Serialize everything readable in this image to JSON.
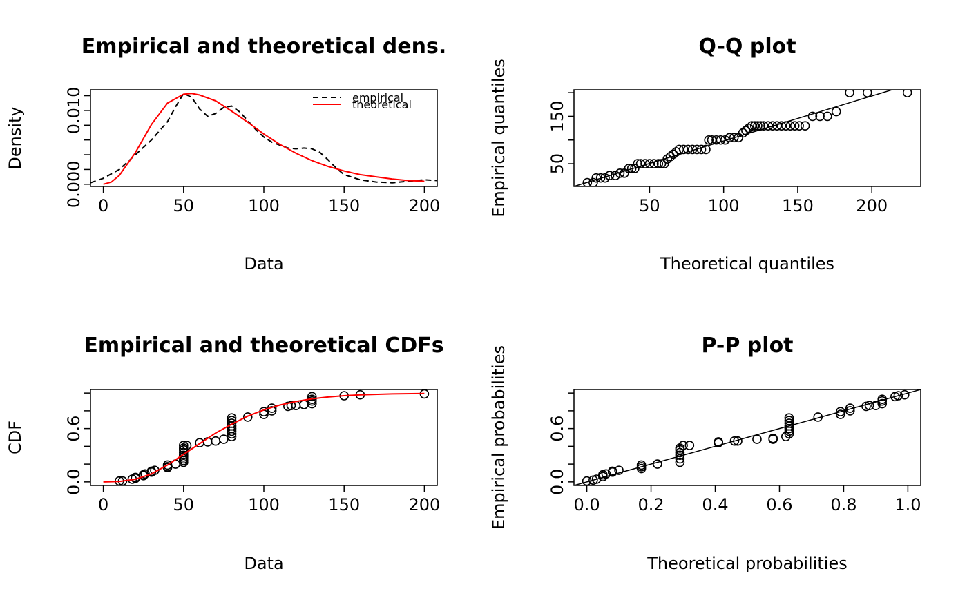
{
  "chart_data": [
    {
      "type": "line",
      "title": "Empirical and theoretical dens.",
      "xlabel": "Data",
      "ylabel": "Density",
      "xlim": [
        -8,
        208
      ],
      "ylim": [
        -0.0003,
        0.0128
      ],
      "xticks": [
        0,
        50,
        100,
        150,
        200
      ],
      "yticks": [
        0.0,
        0.002,
        0.004,
        0.006,
        0.008,
        0.01,
        0.012
      ],
      "ytick_labels": [
        "0.000",
        "",
        "",
        "",
        "",
        "0.010",
        ""
      ],
      "legend_position": "top-right",
      "series": [
        {
          "name": "empirical",
          "style": "dashed",
          "color": "#000000",
          "x": [
            -8,
            0,
            10,
            20,
            30,
            40,
            45,
            50,
            55,
            60,
            65,
            70,
            75,
            80,
            85,
            90,
            95,
            100,
            105,
            110,
            115,
            120,
            125,
            130,
            135,
            140,
            145,
            150,
            160,
            170,
            180,
            190,
            200,
            208
          ],
          "y": [
            0.0002,
            0.0008,
            0.002,
            0.004,
            0.006,
            0.0085,
            0.0105,
            0.0123,
            0.0118,
            0.0102,
            0.0092,
            0.0096,
            0.0104,
            0.0106,
            0.0098,
            0.0086,
            0.0074,
            0.0064,
            0.0057,
            0.0053,
            0.0049,
            0.0048,
            0.0049,
            0.0048,
            0.0043,
            0.0033,
            0.0022,
            0.0013,
            0.0006,
            0.0003,
            0.0002,
            0.0004,
            0.0006,
            0.0005
          ]
        },
        {
          "name": "theoretical",
          "style": "solid",
          "color": "#ff0000",
          "x": [
            0,
            5,
            10,
            20,
            30,
            40,
            50,
            55,
            60,
            70,
            80,
            90,
            100,
            110,
            120,
            130,
            140,
            150,
            160,
            170,
            180,
            190,
            200
          ],
          "y": [
            0.0,
            0.0003,
            0.0012,
            0.0043,
            0.0081,
            0.011,
            0.0122,
            0.0123,
            0.0121,
            0.0113,
            0.0099,
            0.0084,
            0.0068,
            0.0054,
            0.0042,
            0.0032,
            0.0024,
            0.0018,
            0.0013,
            0.001,
            0.0007,
            0.0005,
            0.0004
          ]
        }
      ]
    },
    {
      "type": "scatter",
      "title": "Q-Q plot",
      "xlabel": "Theoretical quantiles",
      "ylabel": "Empirical quantiles",
      "xlim": [
        -1,
        233
      ],
      "ylim": [
        2,
        206
      ],
      "xticks": [
        50,
        100,
        150,
        200
      ],
      "yticks": [
        50,
        100,
        150,
        200
      ],
      "ytick_labels": [
        "50",
        "",
        "150",
        ""
      ],
      "reference_line": {
        "slope": 0.95,
        "intercept": 3
      },
      "points": {
        "x": [
          8,
          12,
          14,
          17,
          20,
          23,
          27,
          30,
          33,
          36,
          38,
          40,
          42,
          44,
          47,
          50,
          53,
          56,
          58,
          60,
          62,
          64,
          66,
          68,
          70,
          73,
          76,
          79,
          82,
          85,
          88,
          90,
          92,
          95,
          98,
          101,
          104,
          107,
          110,
          113,
          115,
          117,
          119,
          121,
          123,
          125,
          127,
          130,
          133,
          136,
          139,
          142,
          145,
          148,
          151,
          155,
          160,
          165,
          170,
          176,
          185,
          197,
          224
        ],
        "y": [
          10,
          10,
          20,
          20,
          20,
          25,
          25,
          30,
          30,
          40,
          40,
          40,
          50,
          50,
          50,
          50,
          50,
          50,
          50,
          50,
          60,
          65,
          70,
          75,
          80,
          80,
          80,
          80,
          80,
          80,
          80,
          100,
          100,
          100,
          100,
          100,
          105,
          105,
          105,
          115,
          120,
          125,
          130,
          130,
          130,
          130,
          130,
          130,
          130,
          130,
          130,
          130,
          130,
          130,
          130,
          130,
          150,
          150,
          150,
          160,
          200,
          200,
          200
        ]
      }
    },
    {
      "type": "scatter",
      "title": "Empirical and theoretical CDFs",
      "xlabel": "Data",
      "ylabel": "CDF",
      "xlim": [
        -8,
        208
      ],
      "ylim": [
        -0.04,
        1.04
      ],
      "xticks": [
        0,
        50,
        100,
        150,
        200
      ],
      "yticks": [
        0.0,
        0.2,
        0.4,
        0.6,
        0.8,
        1.0
      ],
      "ytick_labels": [
        "0.0",
        "",
        "",
        "0.6",
        "",
        ""
      ],
      "theoretical_curve": {
        "name": "theoretical",
        "color": "#ff0000",
        "x": [
          0,
          10,
          20,
          30,
          40,
          50,
          60,
          70,
          80,
          90,
          100,
          110,
          120,
          130,
          140,
          150,
          160,
          180,
          200
        ],
        "y": [
          0.0,
          0.005,
          0.03,
          0.09,
          0.19,
          0.31,
          0.43,
          0.55,
          0.65,
          0.74,
          0.81,
          0.865,
          0.905,
          0.935,
          0.955,
          0.97,
          0.98,
          0.99,
          0.995
        ]
      },
      "points": {
        "x": [
          10,
          12,
          18,
          20,
          20,
          25,
          25,
          26,
          30,
          30,
          32,
          40,
          40,
          40,
          45,
          50,
          50,
          50,
          50,
          50,
          50,
          50,
          50,
          50,
          52,
          60,
          65,
          70,
          75,
          80,
          80,
          80,
          80,
          80,
          80,
          80,
          80,
          90,
          100,
          100,
          105,
          105,
          115,
          117,
          120,
          125,
          130,
          130,
          130,
          130,
          150,
          160,
          200
        ],
        "y": [
          0.01,
          0.01,
          0.03,
          0.04,
          0.05,
          0.07,
          0.08,
          0.09,
          0.11,
          0.12,
          0.13,
          0.16,
          0.17,
          0.19,
          0.2,
          0.22,
          0.24,
          0.26,
          0.28,
          0.3,
          0.33,
          0.36,
          0.38,
          0.41,
          0.41,
          0.44,
          0.45,
          0.46,
          0.48,
          0.51,
          0.54,
          0.57,
          0.6,
          0.63,
          0.66,
          0.69,
          0.72,
          0.73,
          0.76,
          0.79,
          0.8,
          0.83,
          0.85,
          0.86,
          0.86,
          0.87,
          0.88,
          0.91,
          0.93,
          0.96,
          0.97,
          0.98,
          0.99
        ]
      }
    },
    {
      "type": "scatter",
      "title": "P-P plot",
      "xlabel": "Theoretical probabilities",
      "ylabel": "Empirical probabilities",
      "xlim": [
        -0.04,
        1.04
      ],
      "ylim": [
        -0.04,
        1.04
      ],
      "xticks": [
        0.0,
        0.2,
        0.4,
        0.6,
        0.8,
        1.0
      ],
      "xtick_labels": [
        "0.0",
        "0.2",
        "0.4",
        "0.6",
        "0.8",
        "1.0"
      ],
      "yticks": [
        0.0,
        0.2,
        0.4,
        0.6,
        0.8,
        1.0
      ],
      "ytick_labels": [
        "0.0",
        "",
        "",
        "0.6",
        "",
        ""
      ],
      "reference_line": {
        "slope": 1,
        "intercept": 0
      },
      "points": {
        "x": [
          0.0,
          0.02,
          0.03,
          0.05,
          0.05,
          0.06,
          0.08,
          0.08,
          0.1,
          0.17,
          0.17,
          0.17,
          0.22,
          0.29,
          0.29,
          0.29,
          0.29,
          0.29,
          0.29,
          0.3,
          0.32,
          0.41,
          0.41,
          0.46,
          0.47,
          0.53,
          0.58,
          0.58,
          0.62,
          0.63,
          0.63,
          0.63,
          0.63,
          0.63,
          0.63,
          0.63,
          0.72,
          0.79,
          0.79,
          0.82,
          0.82,
          0.87,
          0.88,
          0.9,
          0.92,
          0.92,
          0.92,
          0.96,
          0.97,
          0.99
        ],
        "y": [
          0.01,
          0.02,
          0.03,
          0.06,
          0.08,
          0.09,
          0.11,
          0.12,
          0.13,
          0.15,
          0.17,
          0.19,
          0.2,
          0.22,
          0.26,
          0.3,
          0.33,
          0.36,
          0.38,
          0.41,
          0.41,
          0.44,
          0.45,
          0.46,
          0.46,
          0.48,
          0.48,
          0.49,
          0.51,
          0.54,
          0.57,
          0.6,
          0.63,
          0.66,
          0.69,
          0.72,
          0.73,
          0.76,
          0.79,
          0.8,
          0.83,
          0.85,
          0.86,
          0.86,
          0.88,
          0.91,
          0.93,
          0.96,
          0.97,
          0.98
        ]
      }
    }
  ]
}
